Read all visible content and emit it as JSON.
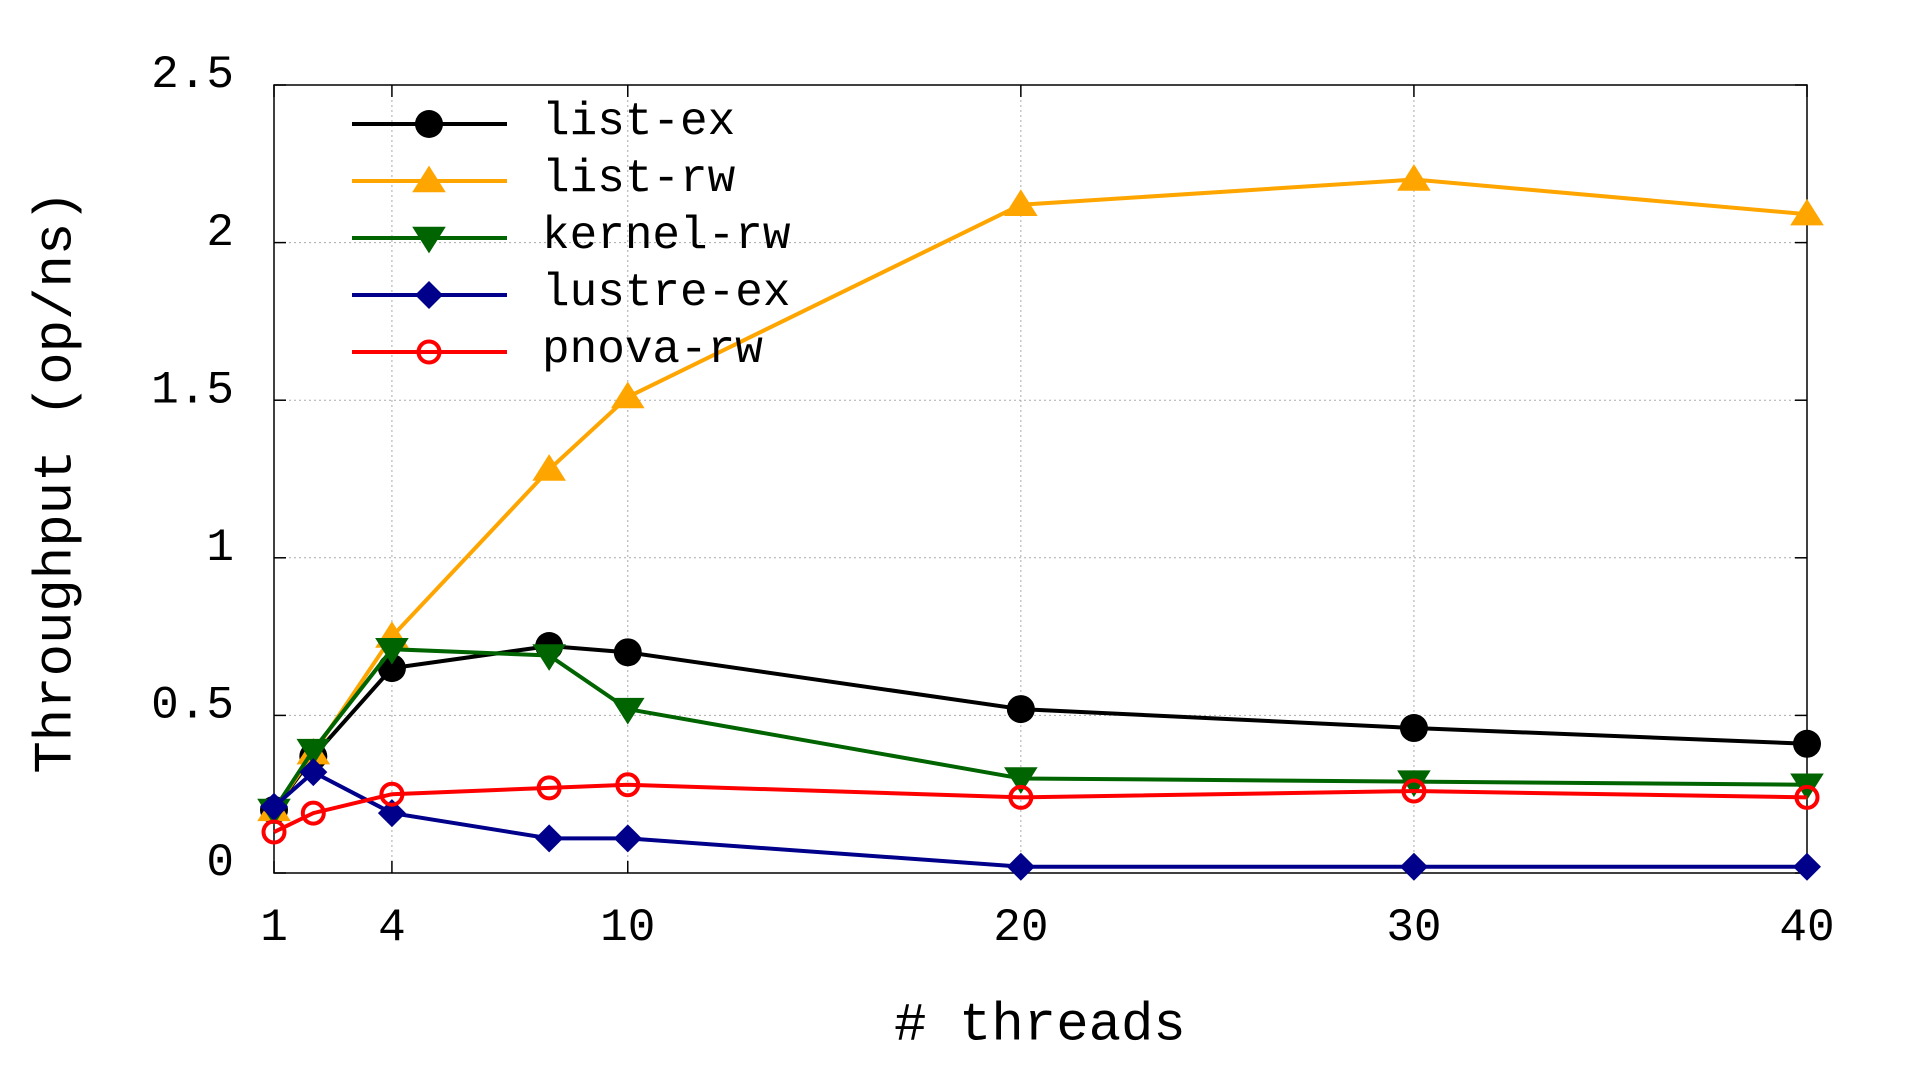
{
  "chart_data": {
    "type": "line",
    "x_label": "# threads",
    "y_label": "Throughput (op/ns)",
    "x": [
      1,
      2,
      4,
      8,
      10,
      20,
      30,
      40
    ],
    "xlim": [
      1,
      40
    ],
    "xticks": [
      1,
      4,
      10,
      20,
      30,
      40
    ],
    "ylim": [
      0,
      2.5
    ],
    "yticks": [
      0,
      0.5,
      1,
      1.5,
      2,
      2.5
    ],
    "grid": true,
    "legend": "top-left",
    "series": [
      {
        "name": "list-ex",
        "color": "#000000",
        "marker": "circle",
        "values": [
          0.2,
          0.37,
          0.65,
          0.72,
          0.7,
          0.52,
          0.46,
          0.41
        ]
      },
      {
        "name": "list-rw",
        "color": "#ffa500",
        "marker": "triangle-up",
        "values": [
          0.2,
          0.38,
          0.75,
          1.28,
          1.51,
          2.12,
          2.2,
          2.09
        ]
      },
      {
        "name": "kernel-rw",
        "color": "#006400",
        "marker": "triangle-down",
        "values": [
          0.2,
          0.39,
          0.71,
          0.69,
          0.52,
          0.3,
          0.29,
          0.28
        ]
      },
      {
        "name": "lustre-ex",
        "color": "#00008b",
        "marker": "diamond",
        "values": [
          0.21,
          0.32,
          0.19,
          0.11,
          0.11,
          0.02,
          0.02,
          0.02
        ]
      },
      {
        "name": "pnova-rw",
        "color": "#ff0000",
        "marker": "open-circle",
        "values": [
          0.13,
          0.19,
          0.25,
          0.27,
          0.28,
          0.24,
          0.26,
          0.24
        ]
      }
    ]
  }
}
